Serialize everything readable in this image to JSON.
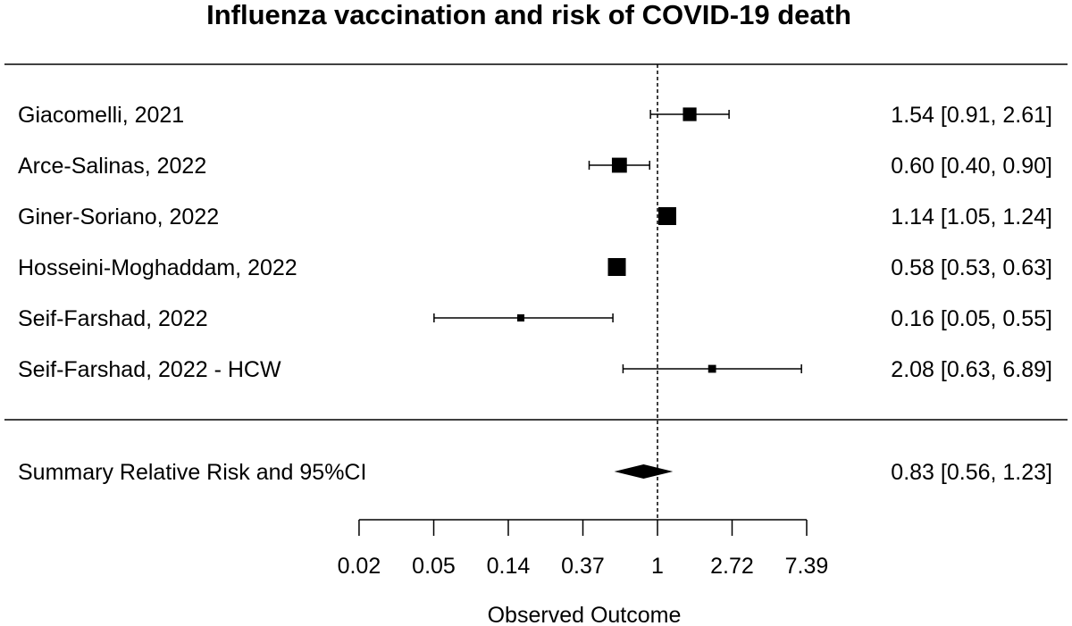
{
  "chart_data": {
    "type": "forest",
    "title": "Influenza vaccination and risk of COVID-19 death",
    "xlabel": "Observed Outcome",
    "x_scale": "log",
    "xlim": [
      0.02,
      7.39
    ],
    "reference_line": 1,
    "ticks": [
      "0.02",
      "0.05",
      "0.14",
      "0.37",
      "1",
      "2.72",
      "7.39"
    ],
    "tick_values": [
      0.0183,
      0.0498,
      0.1353,
      0.3679,
      1,
      2.7183,
      7.3891
    ],
    "studies": [
      {
        "label": "Giacomelli, 2021",
        "estimate": 1.54,
        "lower": 0.91,
        "upper": 2.61,
        "weight": 0.7,
        "text": "1.54 [0.91, 2.61]"
      },
      {
        "label": "Arce-Salinas, 2022",
        "estimate": 0.6,
        "lower": 0.4,
        "upper": 0.9,
        "weight": 0.8,
        "text": "0.60 [0.40, 0.90]"
      },
      {
        "label": "Giner-Soriano, 2022",
        "estimate": 1.14,
        "lower": 1.05,
        "upper": 1.24,
        "weight": 1.0,
        "text": "1.14 [1.05, 1.24]"
      },
      {
        "label": "Hosseini-Moghaddam, 2022",
        "estimate": 0.58,
        "lower": 0.53,
        "upper": 0.63,
        "weight": 1.0,
        "text": "0.58 [0.53, 0.63]"
      },
      {
        "label": "Seif-Farshad, 2022",
        "estimate": 0.16,
        "lower": 0.05,
        "upper": 0.55,
        "weight": 0.25,
        "text": "0.16 [0.05, 0.55]"
      },
      {
        "label": "Seif-Farshad, 2022 - HCW",
        "estimate": 2.08,
        "lower": 0.63,
        "upper": 6.89,
        "weight": 0.3,
        "text": "2.08 [0.63, 6.89]"
      }
    ],
    "summary": {
      "label": "Summary Relative Risk and 95%CI",
      "estimate": 0.83,
      "lower": 0.56,
      "upper": 1.23,
      "text": "0.83 [0.56, 1.23]"
    }
  }
}
